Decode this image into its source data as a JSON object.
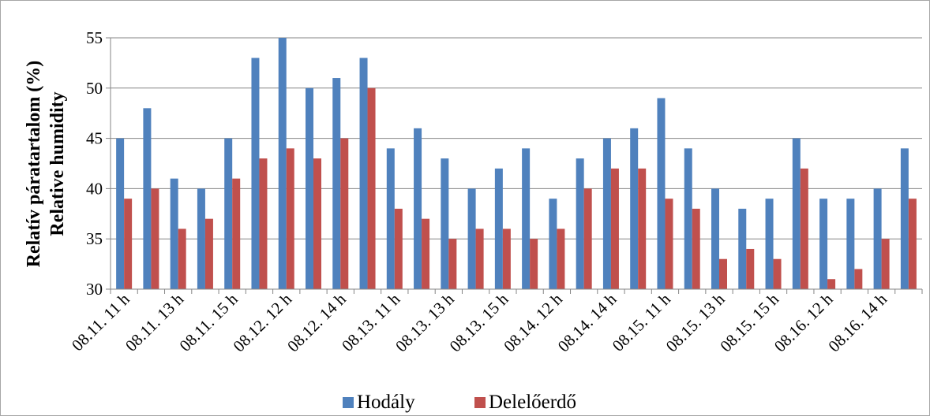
{
  "chart_data": {
    "type": "bar",
    "ylabel_line1": "Relatív páratartalom (%)",
    "ylabel_line2": "Relative humidity",
    "ylim": [
      30,
      55
    ],
    "yticks": [
      30,
      35,
      40,
      45,
      50,
      55
    ],
    "grid": true,
    "legend_position": "bottom",
    "category_count": 30,
    "tick_labels": [
      "08.11. 11 h",
      "08.11. 13 h",
      "08.11. 15 h",
      "08.12. 12 h",
      "08.12. 14 h",
      "08.13. 11 h",
      "08.13. 13 h",
      "08.13. 15 h",
      "08.14. 12 h",
      "08.14. 14 h",
      "08.15. 11 h",
      "08.15. 13 h",
      "08.15. 15 h",
      "08.16. 12 h",
      "08.16. 14 h"
    ],
    "series": [
      {
        "name": "Hodály",
        "color": "#4f81bd",
        "values": [
          45,
          48,
          41,
          40,
          45,
          53,
          55,
          50,
          51,
          53,
          44,
          46,
          43,
          40,
          42,
          44,
          39,
          43,
          45,
          46,
          49,
          44,
          40,
          38,
          39,
          45,
          39,
          39,
          40,
          44
        ]
      },
      {
        "name": "Delelőerdő",
        "color": "#c0504d",
        "values": [
          39,
          40,
          36,
          37,
          41,
          43,
          44,
          43,
          45,
          50,
          38,
          37,
          35,
          36,
          36,
          35,
          36,
          40,
          42,
          42,
          39,
          38,
          33,
          34,
          33,
          42,
          31,
          32,
          35,
          39
        ]
      }
    ]
  }
}
